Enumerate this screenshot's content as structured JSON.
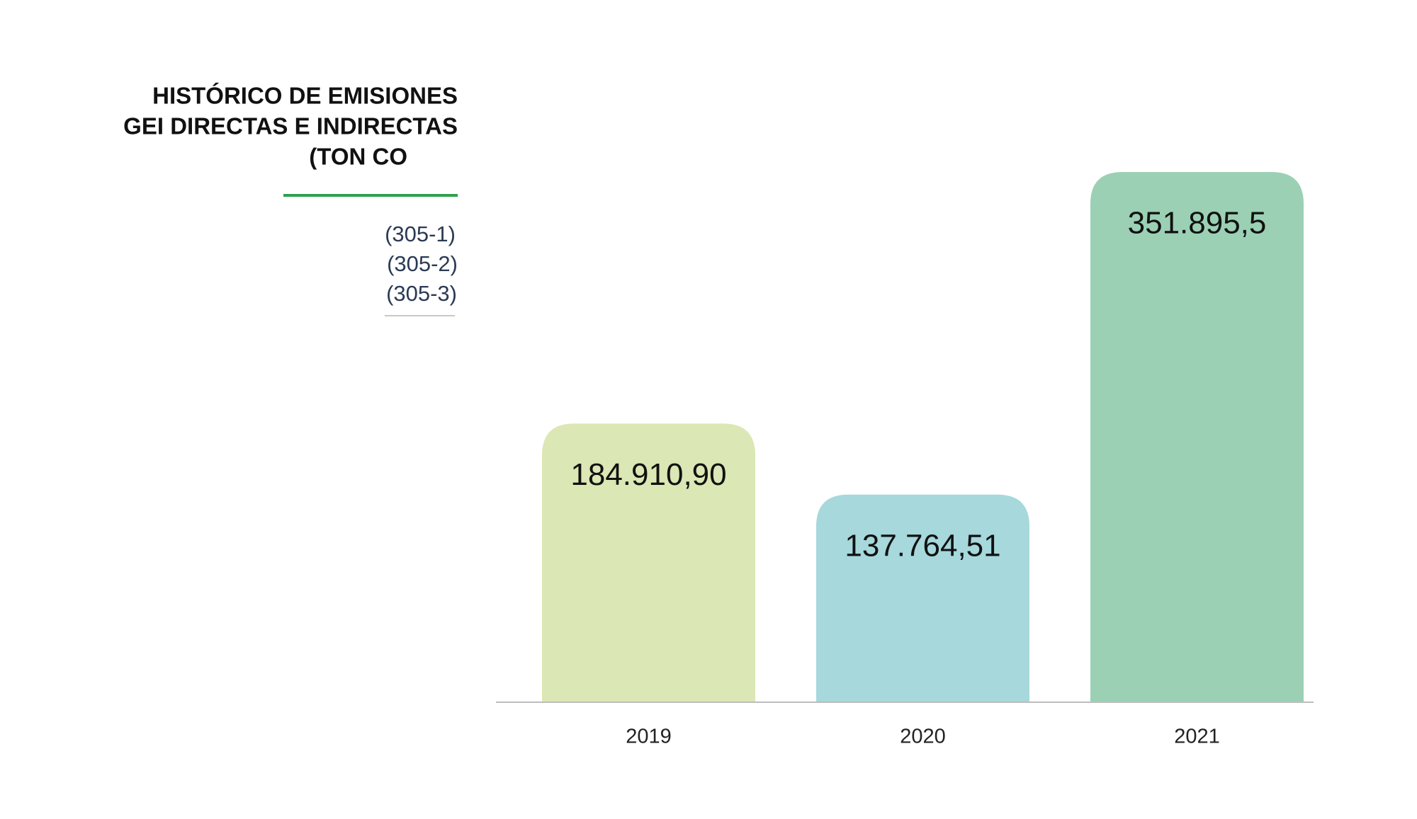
{
  "chart_data": {
    "type": "bar",
    "title": [
      "HISTÓRICO DE EMISIONES",
      "GEI DIRECTAS E INDIRECTAS",
      "(TON CO"
    ],
    "annotations": [
      "(305-1)",
      "(305-2)",
      "(305-3)"
    ],
    "categories": [
      "2019",
      "2020",
      "2021"
    ],
    "values": [
      184910.9,
      137764.51,
      351895.5
    ],
    "value_labels": [
      "184.910,90",
      "137.764,51",
      "351.895,5"
    ],
    "colors": [
      "#dbe7b4",
      "#a6d8dc",
      "#9bd0b4"
    ]
  }
}
